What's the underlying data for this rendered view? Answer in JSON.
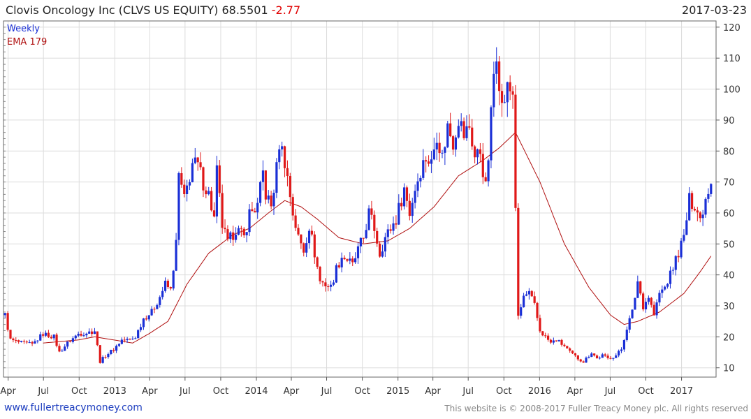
{
  "header": {
    "title": "Clovis Oncology Inc (CLVS US EQUITY) 68.5501",
    "change": "-2.77",
    "date": "2017-03-23"
  },
  "legend": {
    "period": "Weekly",
    "ema": "EMA 179"
  },
  "footer": {
    "site": "www.fullertreacymoney.com",
    "copyright": "This website is © 2008-2017 Fuller Treacy Money plc. All rights reserved"
  },
  "colors": {
    "up": "#1a2fd6",
    "down": "#e01818",
    "ema": "#b01010",
    "grid": "#dcdcdc"
  },
  "chart_data": {
    "type": "candlestick",
    "period": "weekly",
    "ylim": [
      7,
      122
    ],
    "yticks": [
      10,
      20,
      30,
      40,
      50,
      60,
      70,
      80,
      90,
      100,
      110,
      120
    ],
    "xticks": [
      {
        "label": "Apr",
        "t": "2012-04-01"
      },
      {
        "label": "Jul",
        "t": "2012-07-01"
      },
      {
        "label": "Oct",
        "t": "2012-10-01"
      },
      {
        "label": "2013",
        "t": "2013-01-01"
      },
      {
        "label": "Apr",
        "t": "2013-04-01"
      },
      {
        "label": "Jul",
        "t": "2013-07-01"
      },
      {
        "label": "Oct",
        "t": "2013-10-01"
      },
      {
        "label": "2014",
        "t": "2014-01-01"
      },
      {
        "label": "Apr",
        "t": "2014-04-01"
      },
      {
        "label": "Jul",
        "t": "2014-07-01"
      },
      {
        "label": "Oct",
        "t": "2014-10-01"
      },
      {
        "label": "2015",
        "t": "2015-01-01"
      },
      {
        "label": "Apr",
        "t": "2015-04-01"
      },
      {
        "label": "Jul",
        "t": "2015-07-01"
      },
      {
        "label": "Oct",
        "t": "2015-10-01"
      },
      {
        "label": "2016",
        "t": "2016-01-01"
      },
      {
        "label": "Apr",
        "t": "2016-04-01"
      },
      {
        "label": "Jul",
        "t": "2016-07-01"
      },
      {
        "label": "Oct",
        "t": "2016-10-01"
      },
      {
        "label": "2017",
        "t": "2017-01-01"
      }
    ],
    "xlim": [
      "2012-03-20",
      "2017-03-31"
    ],
    "close_anchors": [
      [
        "2012-03-24",
        27
      ],
      [
        "2012-04-07",
        19
      ],
      [
        "2012-05-05",
        18
      ],
      [
        "2012-06-02",
        17.5
      ],
      [
        "2012-06-30",
        21
      ],
      [
        "2012-07-28",
        20
      ],
      [
        "2012-08-11",
        15
      ],
      [
        "2012-09-01",
        18
      ],
      [
        "2012-09-29",
        21
      ],
      [
        "2012-10-27",
        21.5
      ],
      [
        "2012-11-10",
        22
      ],
      [
        "2012-11-24",
        12
      ],
      [
        "2012-12-08",
        14
      ],
      [
        "2012-12-29",
        16
      ],
      [
        "2013-01-19",
        19
      ],
      [
        "2013-02-09",
        19
      ],
      [
        "2013-02-23",
        20
      ],
      [
        "2013-03-16",
        26
      ],
      [
        "2013-04-06",
        28
      ],
      [
        "2013-04-27",
        33
      ],
      [
        "2013-05-11",
        37
      ],
      [
        "2013-05-25",
        35
      ],
      [
        "2013-06-08",
        50
      ],
      [
        "2013-06-15",
        72
      ],
      [
        "2013-06-29",
        64
      ],
      [
        "2013-07-20",
        76
      ],
      [
        "2013-08-03",
        75
      ],
      [
        "2013-08-17",
        70
      ],
      [
        "2013-08-31",
        66
      ],
      [
        "2013-09-14",
        58
      ],
      [
        "2013-09-21",
        73
      ],
      [
        "2013-10-05",
        56
      ],
      [
        "2013-10-19",
        50
      ],
      [
        "2013-11-09",
        55
      ],
      [
        "2013-11-30",
        52
      ],
      [
        "2013-12-14",
        60
      ],
      [
        "2014-01-04",
        62
      ],
      [
        "2014-01-18",
        73
      ],
      [
        "2014-01-25",
        66
      ],
      [
        "2014-02-08",
        62
      ],
      [
        "2014-02-22",
        74
      ],
      [
        "2014-03-01",
        83
      ],
      [
        "2014-03-15",
        77
      ],
      [
        "2014-04-05",
        60
      ],
      [
        "2014-04-19",
        52
      ],
      [
        "2014-05-03",
        48
      ],
      [
        "2014-05-17",
        56
      ],
      [
        "2014-05-31",
        47
      ],
      [
        "2014-06-14",
        38
      ],
      [
        "2014-06-28",
        37
      ],
      [
        "2014-07-12",
        36
      ],
      [
        "2014-07-26",
        42
      ],
      [
        "2014-08-09",
        46
      ],
      [
        "2014-08-23",
        45
      ],
      [
        "2014-09-06",
        43
      ],
      [
        "2014-09-20",
        48
      ],
      [
        "2014-10-04",
        52
      ],
      [
        "2014-10-18",
        60
      ],
      [
        "2014-11-01",
        55
      ],
      [
        "2014-11-15",
        47
      ],
      [
        "2014-11-29",
        52
      ],
      [
        "2014-12-13",
        55
      ],
      [
        "2014-12-27",
        58
      ],
      [
        "2015-01-17",
        68
      ],
      [
        "2015-01-31",
        60
      ],
      [
        "2015-02-14",
        68
      ],
      [
        "2015-02-28",
        74
      ],
      [
        "2015-03-14",
        78
      ],
      [
        "2015-03-28",
        76
      ],
      [
        "2015-04-11",
        86
      ],
      [
        "2015-04-25",
        78
      ],
      [
        "2015-05-09",
        88
      ],
      [
        "2015-05-23",
        83
      ],
      [
        "2015-06-06",
        91
      ],
      [
        "2015-06-20",
        85
      ],
      [
        "2015-07-04",
        88
      ],
      [
        "2015-07-18",
        78
      ],
      [
        "2015-08-01",
        80
      ],
      [
        "2015-08-15",
        68
      ],
      [
        "2015-08-22",
        78
      ],
      [
        "2015-09-05",
        105
      ],
      [
        "2015-09-12",
        113
      ],
      [
        "2015-09-26",
        94
      ],
      [
        "2015-10-10",
        100
      ],
      [
        "2015-10-24",
        99
      ],
      [
        "2015-11-07",
        26
      ],
      [
        "2015-11-21",
        33
      ],
      [
        "2015-12-05",
        34
      ],
      [
        "2015-12-19",
        30
      ],
      [
        "2016-01-02",
        22
      ],
      [
        "2016-01-16",
        20
      ],
      [
        "2016-01-30",
        18
      ],
      [
        "2016-02-13",
        19
      ],
      [
        "2016-03-05",
        17
      ],
      [
        "2016-03-19",
        15
      ],
      [
        "2016-04-09",
        13
      ],
      [
        "2016-04-23",
        12
      ],
      [
        "2016-05-14",
        15
      ],
      [
        "2016-05-28",
        13
      ],
      [
        "2016-06-11",
        14
      ],
      [
        "2016-06-25",
        13
      ],
      [
        "2016-07-16",
        14
      ],
      [
        "2016-07-30",
        16
      ],
      [
        "2016-08-13",
        23
      ],
      [
        "2016-08-27",
        28
      ],
      [
        "2016-09-10",
        38
      ],
      [
        "2016-09-24",
        30
      ],
      [
        "2016-10-08",
        33
      ],
      [
        "2016-10-22",
        27
      ],
      [
        "2016-11-05",
        34
      ],
      [
        "2016-11-19",
        36
      ],
      [
        "2016-12-03",
        40
      ],
      [
        "2016-12-17",
        45
      ],
      [
        "2017-01-07",
        52
      ],
      [
        "2017-01-21",
        64
      ],
      [
        "2017-02-04",
        63
      ],
      [
        "2017-02-18",
        58
      ],
      [
        "2017-03-04",
        65
      ],
      [
        "2017-03-18",
        71
      ],
      [
        "2017-03-23",
        68.55
      ]
    ],
    "ema_anchors": [
      [
        "2012-06-30",
        18
      ],
      [
        "2012-09-29",
        19
      ],
      [
        "2012-11-10",
        20
      ],
      [
        "2013-02-16",
        18
      ],
      [
        "2013-03-30",
        21
      ],
      [
        "2013-05-18",
        25
      ],
      [
        "2013-07-06",
        37
      ],
      [
        "2013-08-31",
        47
      ],
      [
        "2013-11-02",
        53
      ],
      [
        "2013-12-14",
        55
      ],
      [
        "2014-02-01",
        60
      ],
      [
        "2014-03-15",
        64
      ],
      [
        "2014-04-26",
        62
      ],
      [
        "2014-06-07",
        58
      ],
      [
        "2014-08-02",
        52
      ],
      [
        "2014-10-04",
        50
      ],
      [
        "2014-12-06",
        51
      ],
      [
        "2015-01-31",
        55
      ],
      [
        "2015-04-04",
        62
      ],
      [
        "2015-06-06",
        72
      ],
      [
        "2015-08-08",
        77
      ],
      [
        "2015-09-19",
        81
      ],
      [
        "2015-10-31",
        86
      ],
      [
        "2016-01-02",
        70
      ],
      [
        "2016-03-05",
        50
      ],
      [
        "2016-05-07",
        36
      ],
      [
        "2016-07-02",
        27
      ],
      [
        "2016-08-06",
        24
      ],
      [
        "2016-09-10",
        25
      ],
      [
        "2016-11-05",
        28
      ],
      [
        "2017-01-07",
        34
      ],
      [
        "2017-02-18",
        41
      ],
      [
        "2017-03-23",
        47
      ]
    ]
  }
}
